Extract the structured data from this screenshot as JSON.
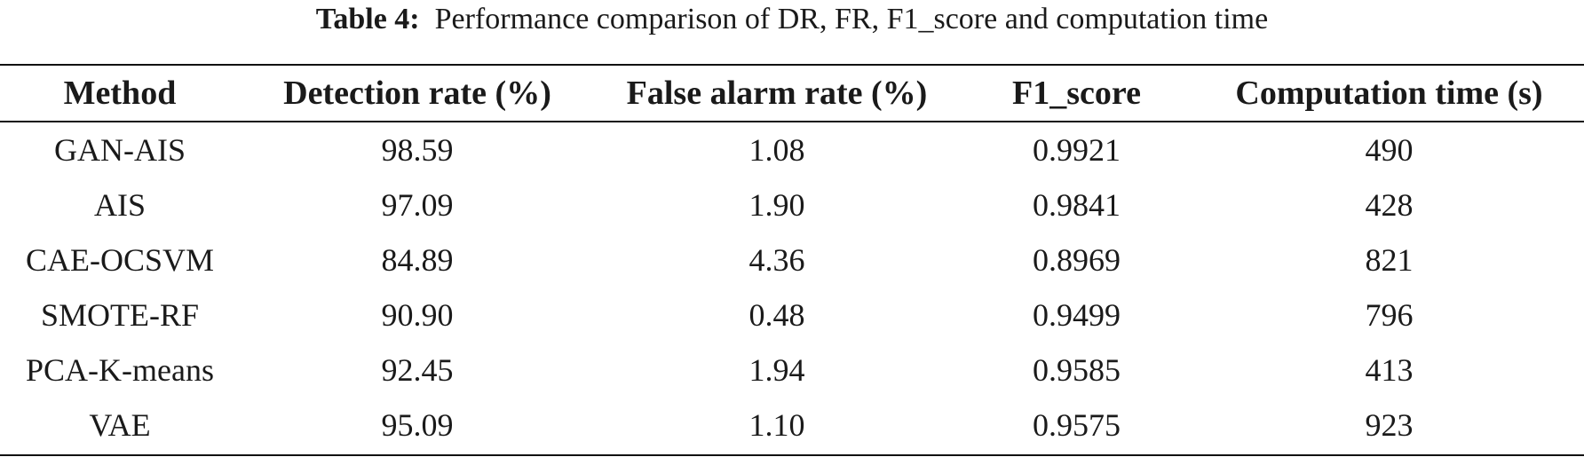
{
  "caption": {
    "label": "Table 4:",
    "text": "Performance comparison of DR, FR, F1_score and computation time"
  },
  "table": {
    "headers": [
      "Method",
      "Detection rate (%)",
      "False alarm rate (%)",
      "F1_score",
      "Computation time (s)"
    ],
    "rows": [
      [
        "GAN-AIS",
        "98.59",
        "1.08",
        "0.9921",
        "490"
      ],
      [
        "AIS",
        "97.09",
        "1.90",
        "0.9841",
        "428"
      ],
      [
        "CAE-OCSVM",
        "84.89",
        "4.36",
        "0.8969",
        "821"
      ],
      [
        "SMOTE-RF",
        "90.90",
        "0.48",
        "0.9499",
        "796"
      ],
      [
        "PCA-K-means",
        "92.45",
        "1.94",
        "0.9585",
        "413"
      ],
      [
        "VAE",
        "95.09",
        "1.10",
        "0.9575",
        "923"
      ]
    ]
  }
}
